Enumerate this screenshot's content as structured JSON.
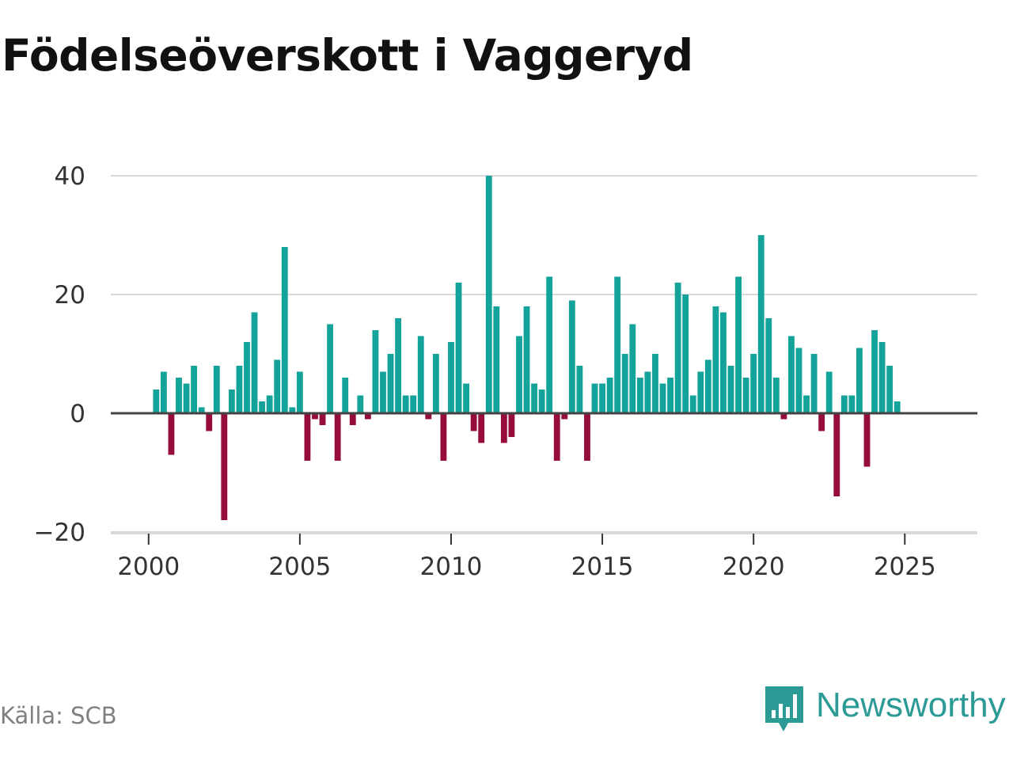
{
  "title": "Födelseöverskott i Vaggeryd",
  "source": "Källa: SCB",
  "brand": {
    "name": "Newsworthy",
    "icon": "bar-chart-speech-icon",
    "color": "#2c9a95"
  },
  "colors": {
    "positive": "#13a39b",
    "negative": "#960c3c",
    "grid": "#d9d9d9",
    "zero_line": "#444444"
  },
  "chart_data": {
    "type": "bar",
    "title": "Födelseöverskott i Vaggeryd",
    "xlabel": "",
    "ylabel": "",
    "x_ticks": [
      2000,
      2005,
      2010,
      2015,
      2020,
      2025
    ],
    "x_tick_labels": [
      "2000",
      "2005",
      "2010",
      "2015",
      "2020",
      "2025"
    ],
    "y_ticks": [
      40,
      20,
      0,
      -20
    ],
    "y_tick_labels": [
      "40",
      "20",
      "0",
      "−20"
    ],
    "ylim": [
      -20,
      40
    ],
    "xlim": [
      1998.75,
      2027.4
    ],
    "grid": true,
    "legend": "none",
    "series": [
      {
        "name": "Födelseöverskott",
        "start_year": 2000,
        "frequency": "quarterly",
        "values": [
          4,
          7,
          -7,
          6,
          5,
          8,
          1,
          -3,
          8,
          -18,
          4,
          8,
          12,
          17,
          2,
          3,
          9,
          28,
          1,
          7,
          -8,
          -1,
          -2,
          15,
          -8,
          6,
          -2,
          3,
          -1,
          14,
          7,
          10,
          16,
          3,
          3,
          13,
          -1,
          10,
          -8,
          12,
          22,
          5,
          -3,
          -5,
          40,
          18,
          -5,
          -4,
          13,
          18,
          5,
          4,
          23,
          -8,
          -1,
          19,
          8,
          -8,
          5,
          5,
          6,
          23,
          10,
          15,
          6,
          7,
          10,
          5,
          6,
          22,
          20,
          3,
          7,
          9,
          18,
          17,
          8,
          23,
          6,
          10,
          30,
          16,
          6,
          -1,
          13,
          11,
          3,
          10,
          -3,
          7,
          -14,
          3,
          3,
          11,
          -9,
          14,
          12,
          8,
          2
        ]
      }
    ]
  }
}
